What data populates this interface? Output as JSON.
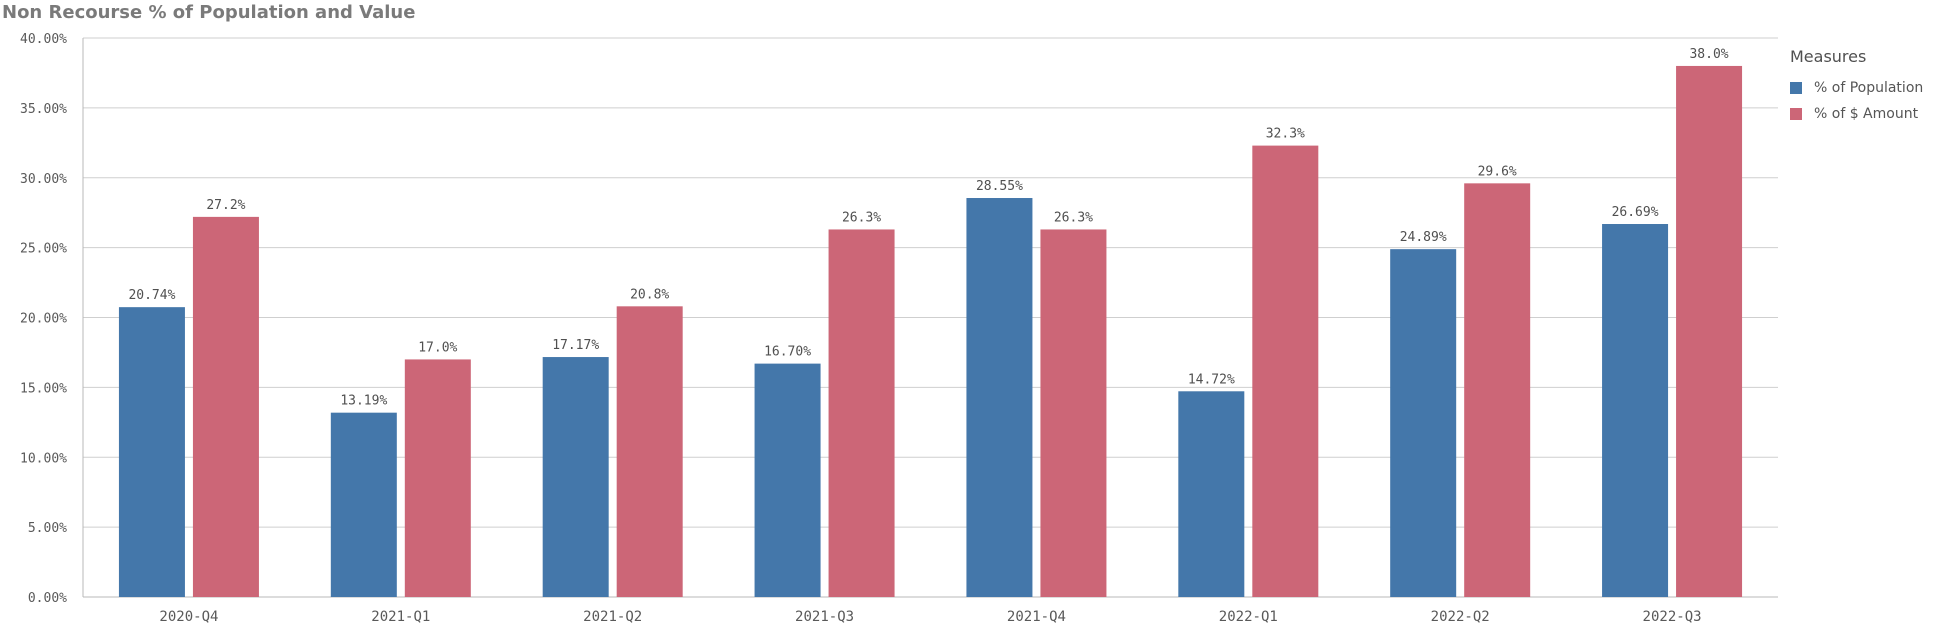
{
  "chart_data": {
    "type": "bar",
    "title": "Non Recourse % of Population and Value",
    "xlabel": "",
    "ylabel": "",
    "categories": [
      "2020-Q4",
      "2021-Q1",
      "2021-Q2",
      "2021-Q3",
      "2021-Q4",
      "2022-Q1",
      "2022-Q2",
      "2022-Q3"
    ],
    "series": [
      {
        "name": "% of Population",
        "color": "#4477aa",
        "values": [
          20.74,
          13.19,
          17.17,
          16.7,
          28.55,
          14.72,
          24.89,
          26.69
        ],
        "labels": [
          "20.74%",
          "13.19%",
          "17.17%",
          "16.70%",
          "28.55%",
          "14.72%",
          "24.89%",
          "26.69%"
        ]
      },
      {
        "name": "% of $ Amount",
        "color": "#cc6677",
        "values": [
          27.2,
          17.0,
          20.8,
          26.3,
          26.3,
          32.3,
          29.6,
          38.0
        ],
        "labels": [
          "27.2%",
          "17.0%",
          "20.8%",
          "26.3%",
          "26.3%",
          "32.3%",
          "29.6%",
          "38.0%"
        ]
      }
    ],
    "ylim": [
      0,
      40
    ],
    "yticks": [
      "0.00%",
      "5.00%",
      "10.00%",
      "15.00%",
      "20.00%",
      "25.00%",
      "30.00%",
      "35.00%",
      "40.00%"
    ],
    "grid": true,
    "legend": {
      "title": "Measures",
      "position": "right"
    }
  }
}
